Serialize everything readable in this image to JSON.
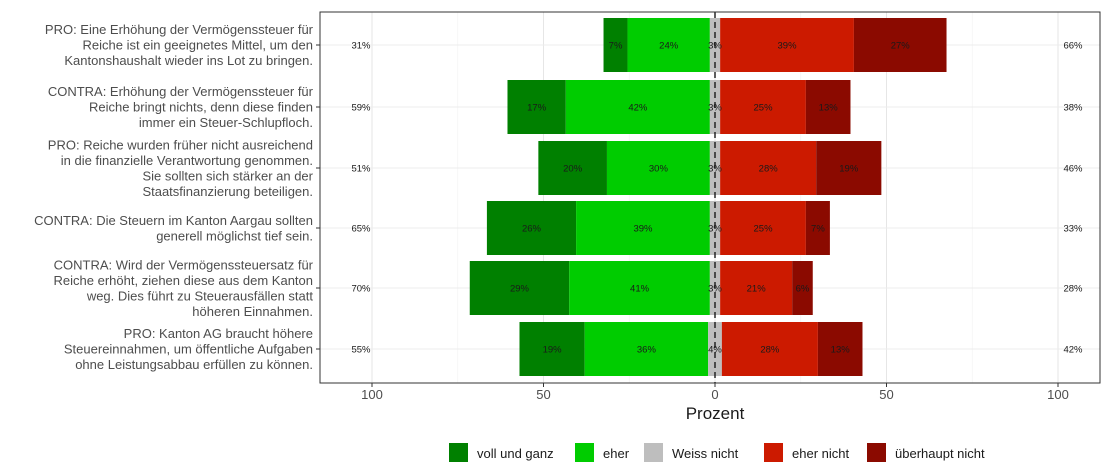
{
  "chart_data": {
    "type": "bar",
    "orientation": "horizontal diverging stacked",
    "xlabel": "Prozent",
    "xticks": [
      100,
      50,
      0,
      50,
      100
    ],
    "xlim": [
      -100,
      100
    ],
    "grid": true,
    "legend_position": "bottom",
    "legend": [
      {
        "name": "voll und ganz",
        "color": "#008000"
      },
      {
        "name": "eher",
        "color": "#00cc00"
      },
      {
        "name": "Weiss nicht",
        "color": "#bebebe"
      },
      {
        "name": "eher nicht",
        "color": "#cc1a00"
      },
      {
        "name": "überhaupt nicht",
        "color": "#8b0a00"
      }
    ],
    "categories": [
      {
        "lines": [
          "PRO: Eine Erhöhung der Vermögenssteuer für",
          "Reiche ist ein geeignetes Mittel, um den",
          "Kantonshaushalt wieder ins Lot zu bringen."
        ],
        "values": [
          7,
          24,
          3,
          39,
          27
        ],
        "labels": [
          "7%",
          "24%",
          "3%",
          "39%",
          "27%"
        ],
        "left_total": "31%",
        "right_total": "66%"
      },
      {
        "lines": [
          "CONTRA: Erhöhung der Vermögenssteuer für",
          "Reiche bringt nichts, denn diese finden",
          "immer ein Steuer-Schlupfloch."
        ],
        "values": [
          17,
          42,
          3,
          25,
          13
        ],
        "labels": [
          "17%",
          "42%",
          "3%",
          "25%",
          "13%"
        ],
        "left_total": "59%",
        "right_total": "38%"
      },
      {
        "lines": [
          "PRO: Reiche wurden früher nicht ausreichend",
          "in die finanzielle Verantwortung genommen.",
          "Sie sollten sich stärker an der",
          "Staatsfinanzierung beteiligen."
        ],
        "values": [
          20,
          30,
          3,
          28,
          19
        ],
        "labels": [
          "20%",
          "30%",
          "3%",
          "28%",
          "19%"
        ],
        "left_total": "51%",
        "right_total": "46%"
      },
      {
        "lines": [
          "CONTRA: Die Steuern im Kanton Aargau sollten",
          "generell möglichst tief sein."
        ],
        "values": [
          26,
          39,
          3,
          25,
          7
        ],
        "labels": [
          "26%",
          "39%",
          "3%",
          "25%",
          "7%"
        ],
        "left_total": "65%",
        "right_total": "33%"
      },
      {
        "lines": [
          "CONTRA: Wird der Vermögenssteuersatz für",
          "Reiche erhöht, ziehen diese aus dem Kanton",
          "weg. Dies führt zu Steuerausfällen statt",
          "höheren Einnahmen."
        ],
        "values": [
          29,
          41,
          3,
          21,
          6
        ],
        "labels": [
          "29%",
          "41%",
          "3%",
          "21%",
          "6%"
        ],
        "left_total": "70%",
        "right_total": "28%"
      },
      {
        "lines": [
          "PRO: Kanton AG braucht höhere",
          "Steuereinnahmen, um öffentliche Aufgaben",
          "ohne Leistungsabbau erfüllen zu können."
        ],
        "values": [
          19,
          36,
          4,
          28,
          13
        ],
        "labels": [
          "19%",
          "36%",
          "4%",
          "28%",
          "13%"
        ],
        "left_total": "55%",
        "right_total": "42%"
      }
    ]
  }
}
